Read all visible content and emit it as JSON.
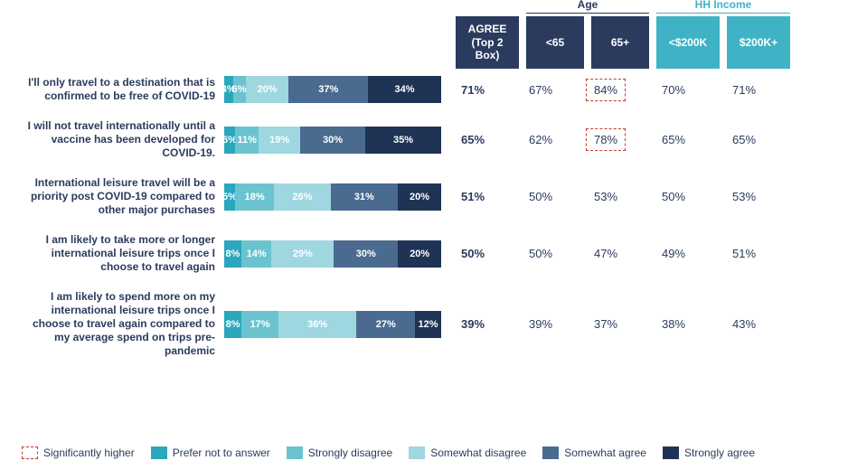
{
  "colors": {
    "prefer_not": "#2aa7bd",
    "strongly_disagree": "#6cc3d0",
    "somewhat_disagree": "#9ed7e0",
    "somewhat_agree": "#4a6a8f",
    "strongly_agree": "#1f3354",
    "header_dark": "#2a3b5e",
    "header_teal": "#3fb3c5",
    "text": "#2a3b5e",
    "sig_border": "#c0392b",
    "age_line": "#2a3b5e",
    "inc_line": "#3fb3c5"
  },
  "group_headers": {
    "age": "Age",
    "income": "HH Income"
  },
  "column_headers": {
    "agree": "AGREE (Top 2 Box)",
    "age_lt65": "<65",
    "age_65p": "65+",
    "inc_lt200": "<$200K",
    "inc_200p": "$200K+"
  },
  "legend": {
    "sig": "Significantly higher",
    "pna": "Prefer not to answer",
    "sd": "Strongly disagree",
    "swd": "Somewhat disagree",
    "swa": "Somewhat agree",
    "sa": "Strongly agree"
  },
  "rows": [
    {
      "label": "I'll only travel to a destination that is confirmed to be free of COVID-19",
      "segs": [
        {
          "v": 4,
          "label": "4%",
          "cKey": "prefer_not"
        },
        {
          "v": 6,
          "label": "6%",
          "cKey": "strongly_disagree"
        },
        {
          "v": 20,
          "label": "20%",
          "cKey": "somewhat_disagree"
        },
        {
          "v": 37,
          "label": "37%",
          "cKey": "somewhat_agree"
        },
        {
          "v": 34,
          "label": "34%",
          "cKey": "strongly_agree"
        }
      ],
      "agree": "71%",
      "age_lt65": "67%",
      "age_65p": "84%",
      "age_65p_hi": true,
      "inc_lt200": "70%",
      "inc_200p": "71%"
    },
    {
      "label": "I will not travel internationally until a vaccine has been developed for COVID-19.",
      "segs": [
        {
          "v": 5,
          "label": "5%",
          "cKey": "prefer_not"
        },
        {
          "v": 11,
          "label": "11%",
          "cKey": "strongly_disagree"
        },
        {
          "v": 19,
          "label": "19%",
          "cKey": "somewhat_disagree"
        },
        {
          "v": 30,
          "label": "30%",
          "cKey": "somewhat_agree"
        },
        {
          "v": 35,
          "label": "35%",
          "cKey": "strongly_agree"
        }
      ],
      "agree": "65%",
      "age_lt65": "62%",
      "age_65p": "78%",
      "age_65p_hi": true,
      "inc_lt200": "65%",
      "inc_200p": "65%"
    },
    {
      "label": "International leisure travel will be a priority post COVID-19 compared to other major purchases",
      "segs": [
        {
          "v": 5,
          "label": "5%",
          "cKey": "prefer_not"
        },
        {
          "v": 18,
          "label": "18%",
          "cKey": "strongly_disagree"
        },
        {
          "v": 26,
          "label": "26%",
          "cKey": "somewhat_disagree"
        },
        {
          "v": 31,
          "label": "31%",
          "cKey": "somewhat_agree"
        },
        {
          "v": 20,
          "label": "20%",
          "cKey": "strongly_agree"
        }
      ],
      "agree": "51%",
      "age_lt65": "50%",
      "age_65p": "53%",
      "inc_lt200": "50%",
      "inc_200p": "53%"
    },
    {
      "label": "I am likely to take more or longer international leisure trips once I choose to travel again",
      "segs": [
        {
          "v": 8,
          "label": "8%",
          "cKey": "prefer_not"
        },
        {
          "v": 14,
          "label": "14%",
          "cKey": "strongly_disagree"
        },
        {
          "v": 29,
          "label": "29%",
          "cKey": "somewhat_disagree"
        },
        {
          "v": 30,
          "label": "30%",
          "cKey": "somewhat_agree"
        },
        {
          "v": 20,
          "label": "20%",
          "cKey": "strongly_agree"
        }
      ],
      "agree": "50%",
      "age_lt65": "50%",
      "age_65p": "47%",
      "inc_lt200": "49%",
      "inc_200p": "51%"
    },
    {
      "label": "I am likely to spend more on my international leisure trips once I choose to travel again compared to my average spend on trips pre-pandemic",
      "segs": [
        {
          "v": 8,
          "label": "8%",
          "cKey": "prefer_not"
        },
        {
          "v": 17,
          "label": "17%",
          "cKey": "strongly_disagree"
        },
        {
          "v": 36,
          "label": "36%",
          "cKey": "somewhat_disagree"
        },
        {
          "v": 27,
          "label": "27%",
          "cKey": "somewhat_agree"
        },
        {
          "v": 12,
          "label": "12%",
          "cKey": "strongly_agree"
        }
      ],
      "agree": "39%",
      "age_lt65": "39%",
      "age_65p": "37%",
      "inc_lt200": "38%",
      "inc_200p": "43%"
    }
  ]
}
